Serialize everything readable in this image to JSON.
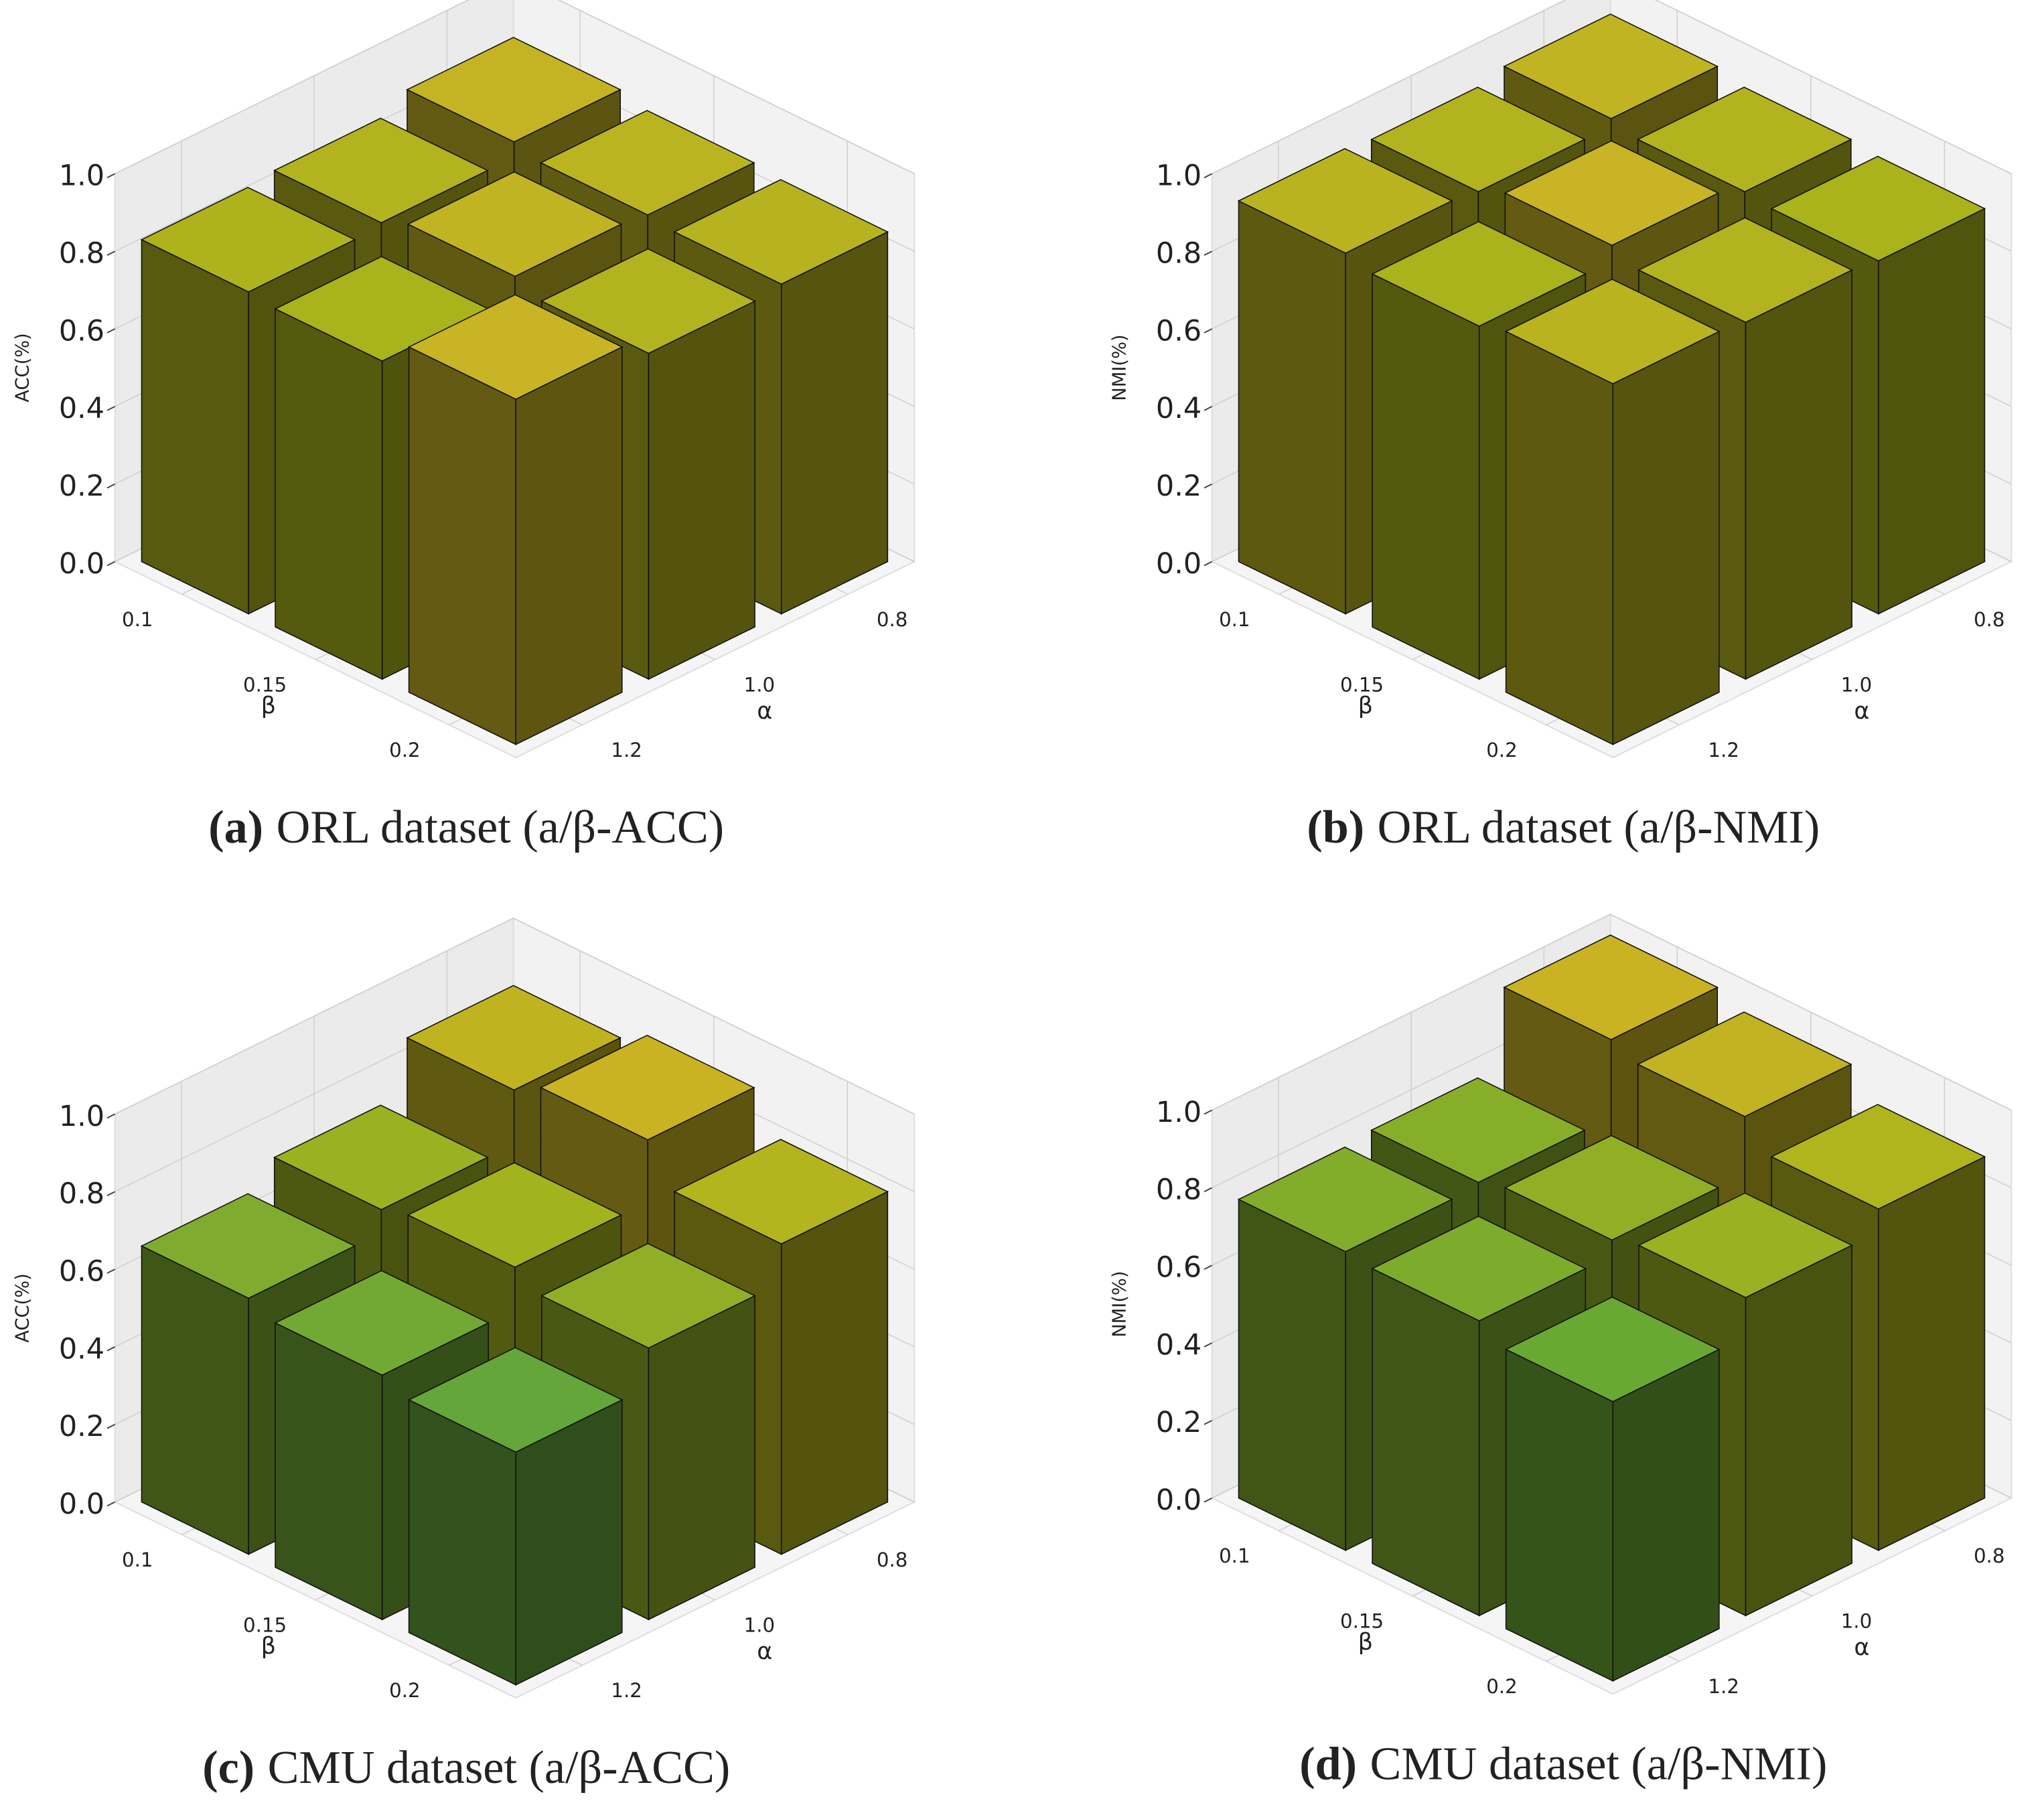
{
  "chart_data": [
    {
      "type": "bar3d",
      "caption_label": "(a)",
      "caption": "ORL dataset (a/β-ACC)",
      "z_label": "ACC(%)",
      "x_label": "α",
      "y_label": "β",
      "x_categories": [
        "0.8",
        "1.0",
        "1.2"
      ],
      "y_categories": [
        "0.1",
        "0.15",
        "0.2"
      ],
      "values": [
        [
          0.88,
          0.84,
          0.83
        ],
        [
          0.86,
          0.87,
          0.82
        ],
        [
          0.85,
          0.84,
          0.89
        ]
      ],
      "zlim": [
        0,
        1
      ],
      "zticks": [
        {
          "value": 0,
          "label": "0.0"
        },
        0.2,
        0.4,
        0.6,
        0.8,
        {
          "value": 1,
          "label": "1.0"
        }
      ],
      "colormap": [
        "#a9b31c",
        "#c9b425"
      ],
      "grid": true
    },
    {
      "type": "bar3d",
      "caption_label": "(b)",
      "caption": "ORL dataset (a/β-NMI)",
      "z_label": "NMI(%)",
      "x_label": "α",
      "y_label": "β",
      "x_categories": [
        "0.8",
        "1.0",
        "1.2"
      ],
      "y_categories": [
        "0.1",
        "0.15",
        "0.2"
      ],
      "values": [
        [
          0.94,
          0.92,
          0.93
        ],
        [
          0.92,
          0.95,
          0.91
        ],
        [
          0.91,
          0.92,
          0.93
        ]
      ],
      "zlim": [
        0,
        1
      ],
      "zticks": [
        {
          "value": 0,
          "label": "0.0"
        },
        0.2,
        0.4,
        0.6,
        0.8,
        {
          "value": 1,
          "label": "1.0"
        }
      ],
      "colormap": [
        "#aab21c",
        "#c8b424"
      ],
      "grid": true
    },
    {
      "type": "bar3d",
      "caption_label": "(c)",
      "caption": "CMU dataset (a/β-ACC)",
      "z_label": "ACC(%)",
      "x_label": "α",
      "y_label": "β",
      "x_categories": [
        "0.8",
        "1.0",
        "1.2"
      ],
      "y_categories": [
        "0.1",
        "0.15",
        "0.2"
      ],
      "values": [
        [
          0.86,
          0.72,
          0.66
        ],
        [
          0.9,
          0.74,
          0.63
        ],
        [
          0.8,
          0.7,
          0.6
        ]
      ],
      "zlim": [
        0,
        1
      ],
      "zticks": [
        {
          "value": 0,
          "label": "0.0"
        },
        0.2,
        0.4,
        0.6,
        0.8,
        {
          "value": 1,
          "label": "1.0"
        }
      ],
      "colormap": [
        "#64a63a",
        "#a8b41c",
        "#c9b322"
      ],
      "grid": true
    },
    {
      "type": "bar3d",
      "caption_label": "(d)",
      "caption": "CMU dataset (a/β-NMI)",
      "z_label": "NMI(%)",
      "x_label": "α",
      "y_label": "β",
      "x_categories": [
        "0.8",
        "1.0",
        "1.2"
      ],
      "y_categories": [
        "0.1",
        "0.15",
        "0.2"
      ],
      "values": [
        [
          0.98,
          0.78,
          0.77
        ],
        [
          0.95,
          0.8,
          0.76
        ],
        [
          0.88,
          0.82,
          0.72
        ]
      ],
      "zlim": [
        0,
        1
      ],
      "zticks": [
        {
          "value": 0,
          "label": "0.0"
        },
        0.2,
        0.4,
        0.6,
        0.8,
        {
          "value": 1,
          "label": "1.0"
        }
      ],
      "colormap": [
        "#6aa834",
        "#a8b41c",
        "#c9b322"
      ],
      "grid": true
    }
  ]
}
